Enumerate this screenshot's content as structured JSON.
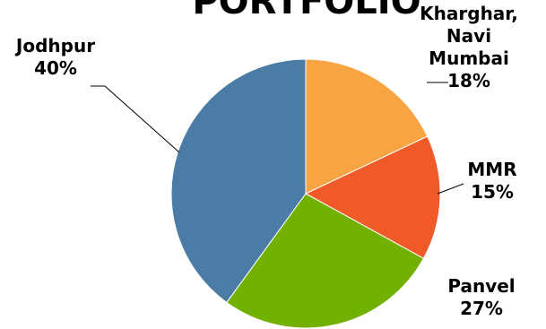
{
  "chart_data": {
    "type": "pie",
    "title": "PORTFOLIO",
    "categories": [
      "Kharghar, Navi Mumbai",
      "MMR",
      "Panvel",
      "Jodhpur"
    ],
    "values": [
      18,
      15,
      27,
      40
    ],
    "unit": "%",
    "start_angle_deg": 0,
    "direction": "clockwise",
    "legend": "none",
    "slices": [
      {
        "name": "Kharghar, Navi Mumbai",
        "label_lines": [
          "Kharghar,",
          "Navi",
          "Mumbai",
          "18%"
        ],
        "value": 18,
        "color": "#F9A443"
      },
      {
        "name": "MMR",
        "label_lines": [
          "MMR",
          "15%"
        ],
        "value": 15,
        "color": "#F05A28"
      },
      {
        "name": "Panvel",
        "label_lines": [
          "Panvel",
          "27%"
        ],
        "value": 27,
        "color": "#72B001"
      },
      {
        "name": "Jodhpur",
        "label_lines": [
          "Jodhpur",
          "40%"
        ],
        "value": 40,
        "color": "#4A7CA5"
      }
    ]
  }
}
